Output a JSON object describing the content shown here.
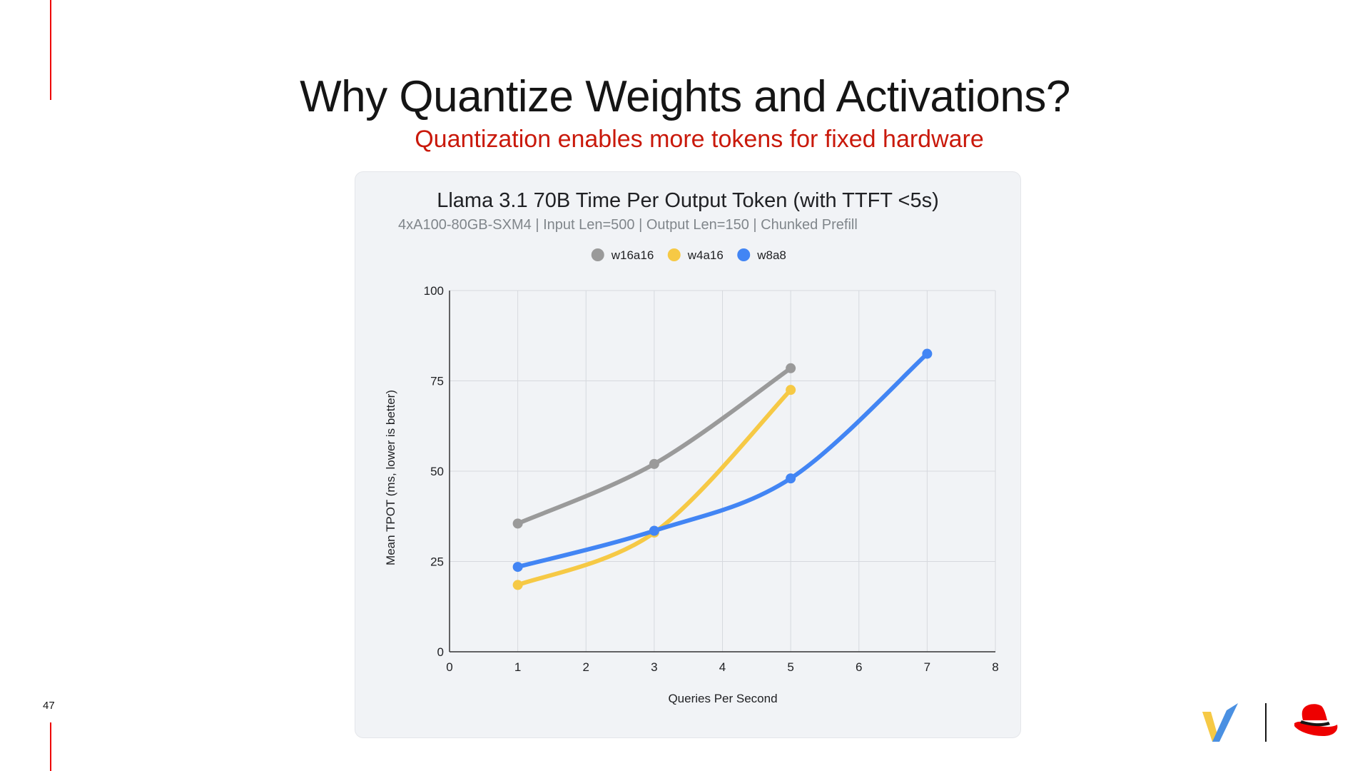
{
  "slide": {
    "title": "Why Quantize Weights and Activations?",
    "subtitle": "Quantization enables more tokens for fixed hardware",
    "page_number": "47",
    "accent_color": "#ee0000",
    "subtitle_color": "#c9190b"
  },
  "logos": {
    "left": "vllm-logo-icon",
    "right": "redhat-hat-icon"
  },
  "chart_data": {
    "type": "line",
    "title": "Llama 3.1 70B Time Per Output Token (with TTFT <5s)",
    "subtitle": "4xA100-80GB-SXM4 | Input Len=500 | Output Len=150 | Chunked Prefill",
    "xlabel": "Queries Per Second",
    "ylabel": "Mean TPOT (ms, lower is better)",
    "xlim": [
      0,
      8
    ],
    "ylim": [
      0,
      100
    ],
    "xticks": [
      "0",
      "1",
      "2",
      "3",
      "4",
      "5",
      "6",
      "7",
      "8"
    ],
    "yticks": [
      "0",
      "25",
      "50",
      "75",
      "100"
    ],
    "grid": true,
    "legend_position": "top",
    "series": [
      {
        "name": "w16a16",
        "color": "#9a9a9a",
        "x": [
          1,
          3,
          5
        ],
        "y": [
          35.5,
          52,
          78.5
        ]
      },
      {
        "name": "w4a16",
        "color": "#f6c945",
        "x": [
          1,
          3,
          5
        ],
        "y": [
          18.5,
          33,
          72.5
        ]
      },
      {
        "name": "w8a8",
        "color": "#4285f4",
        "x": [
          1,
          3,
          5,
          7
        ],
        "y": [
          23.5,
          33.5,
          48,
          82.5
        ]
      }
    ]
  }
}
